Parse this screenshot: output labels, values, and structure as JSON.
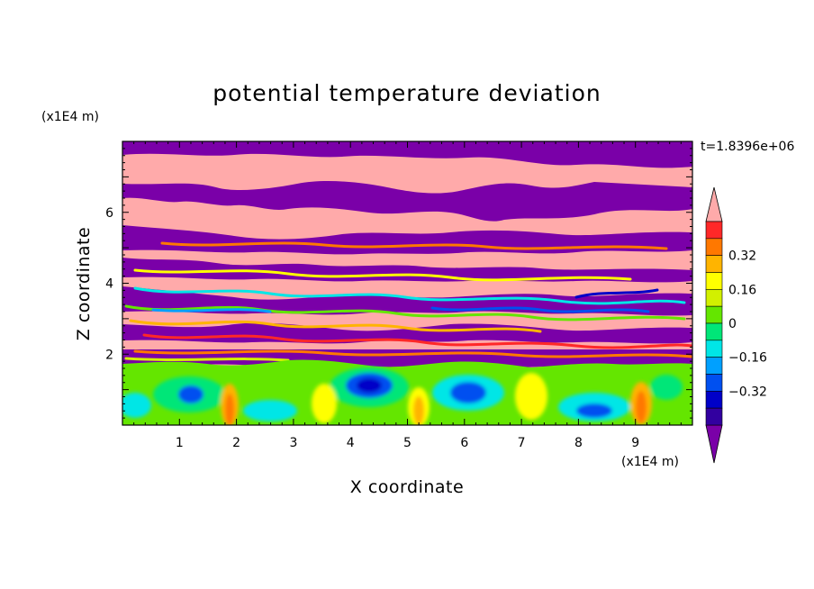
{
  "chart_data": {
    "type": "heatmap",
    "title": "potential temperature deviation",
    "xlabel": "X coordinate",
    "ylabel": "Z coordinate",
    "x_unit": "(x1E4 m)",
    "y_unit": "(x1E4 m)",
    "time_label": "t=1.8396e+06",
    "xlim": [
      0,
      10
    ],
    "ylim": [
      0,
      8
    ],
    "x_ticks": [
      "1",
      "2",
      "3",
      "4",
      "5",
      "6",
      "7",
      "8",
      "9"
    ],
    "y_ticks": [
      "2",
      "4",
      "6"
    ],
    "colorbar": {
      "levels": [
        -0.48,
        -0.4,
        -0.32,
        -0.24,
        -0.16,
        -0.08,
        0,
        0.08,
        0.16,
        0.24,
        0.32,
        0.4,
        0.48
      ],
      "colors": [
        "#7a00a8",
        "#3200a0",
        "#0000c8",
        "#0050f0",
        "#00a0ff",
        "#00e6e6",
        "#00e678",
        "#64e600",
        "#d2f000",
        "#ffff00",
        "#ffb400",
        "#ff7800",
        "#ff2828",
        "#ffaaaa"
      ],
      "labels": [
        "0.32",
        "0.16",
        "0",
        "-0.16",
        "-0.32"
      ]
    }
  }
}
